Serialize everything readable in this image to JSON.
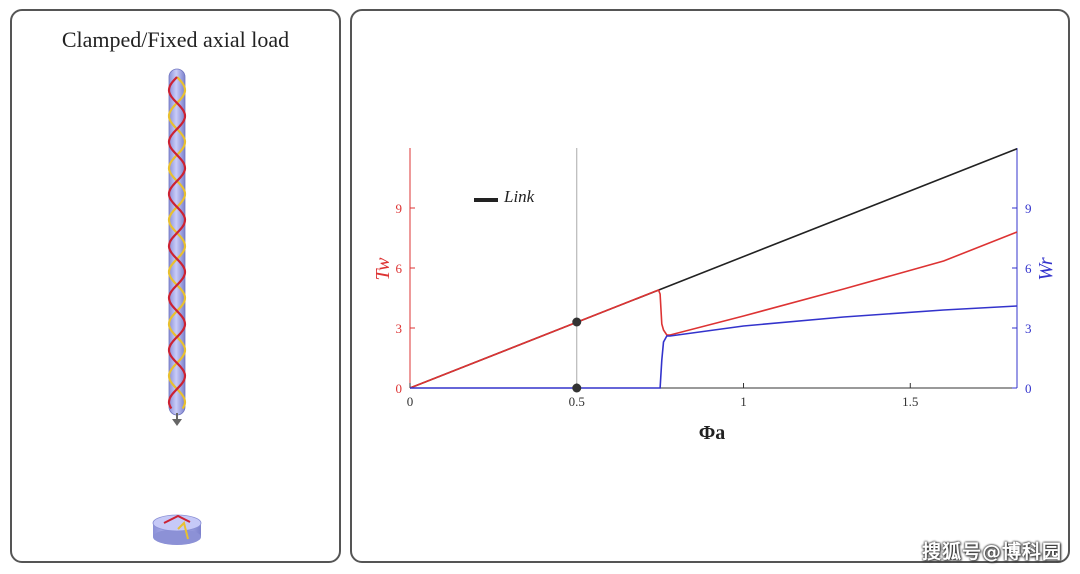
{
  "left_panel": {
    "title": "Clamped/Fixed axial load",
    "helix_colors": {
      "red": "#cc2233",
      "yellow": "#e8c030",
      "rod": "#a9aef0"
    }
  },
  "watermark": "搜狐号@博科园",
  "chart_data": {
    "type": "line",
    "xlabel": "Φa",
    "ylabel_left": "Tw",
    "ylabel_right": "Wr",
    "xlim": [
      0,
      1.82
    ],
    "ylim": [
      0,
      12
    ],
    "x_ticks": [
      "0",
      "0.5",
      "1",
      "1.5"
    ],
    "y_ticks_left": [
      "0",
      "3",
      "6",
      "9"
    ],
    "y_ticks_right": [
      "0",
      "3",
      "6",
      "9"
    ],
    "legend": {
      "entries": [
        "Link"
      ],
      "placement": "top-left"
    },
    "marker_line_x": 0.5,
    "markers": [
      {
        "x": 0.5,
        "y": 3.3
      },
      {
        "x": 0.5,
        "y": 0
      }
    ],
    "colors": {
      "link": "#222222",
      "tw": "#dd3333",
      "wr": "#3333cc"
    },
    "series": [
      {
        "name": "Link",
        "x": [
          0,
          1.82
        ],
        "y": [
          0,
          11.96
        ]
      },
      {
        "x": [
          0,
          0.745,
          0.75,
          0.755,
          0.76,
          0.77,
          0.78,
          1.0,
          1.3,
          1.6,
          1.82
        ],
        "y": [
          0,
          4.9,
          4.7,
          3.2,
          2.9,
          2.65,
          2.65,
          3.6,
          4.95,
          6.35,
          7.8
        ]
      },
      {
        "x": [
          0,
          0.745,
          0.75,
          0.755,
          0.76,
          0.77,
          0.78,
          1.0,
          1.3,
          1.6,
          1.82
        ],
        "y": [
          0,
          0,
          0,
          1.4,
          2.3,
          2.6,
          2.6,
          3.1,
          3.55,
          3.9,
          4.1
        ]
      }
    ]
  }
}
